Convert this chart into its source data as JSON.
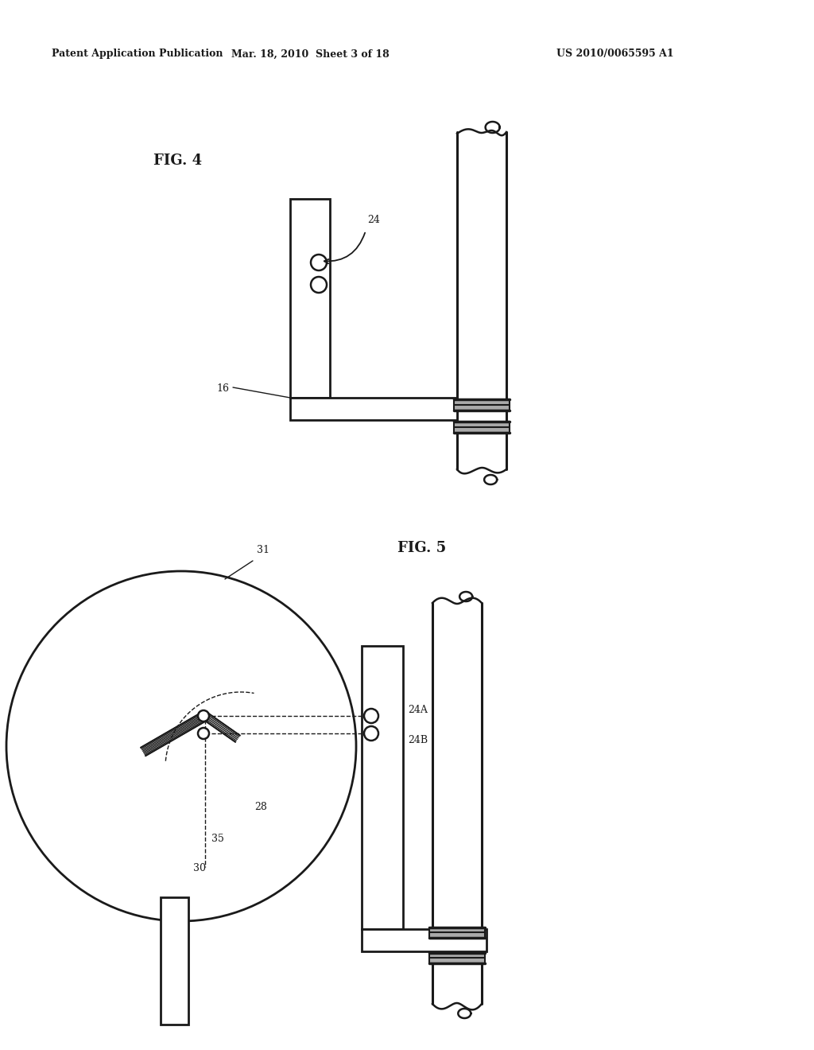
{
  "header_left": "Patent Application Publication",
  "header_mid": "Mar. 18, 2010  Sheet 3 of 18",
  "header_right": "US 2010/0065595 A1",
  "fig4_label": "FIG. 4",
  "fig5_label": "FIG. 5",
  "bg_color": "#ffffff",
  "line_color": "#1a1a1a",
  "label_16": "16",
  "label_24": "24",
  "label_24A": "24A",
  "label_24B": "24B",
  "label_28": "28",
  "label_30": "30",
  "label_31": "31",
  "label_35": "35"
}
